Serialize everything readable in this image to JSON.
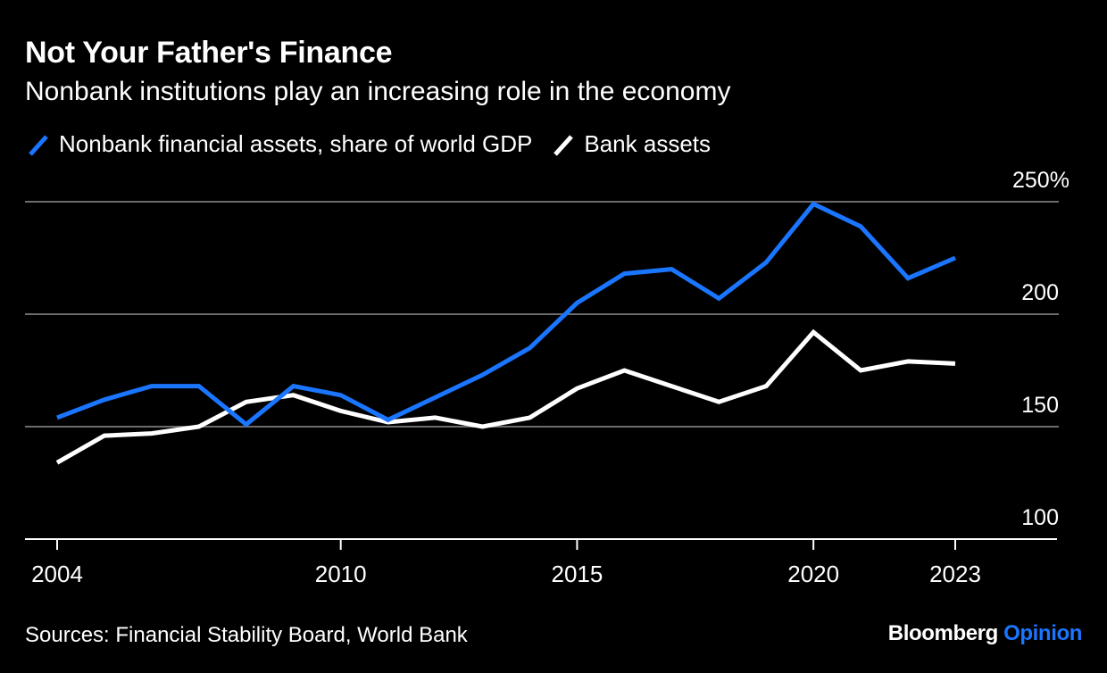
{
  "title": "Not Your Father's Finance",
  "subtitle": "Nonbank institutions play an increasing role in the economy",
  "legend": [
    {
      "label": "Nonbank financial assets, share of world GDP",
      "color": "#1a75ff"
    },
    {
      "label": "Bank assets",
      "color": "#ffffff"
    }
  ],
  "source": "Sources: Financial Stability Board, World Bank",
  "brand": {
    "name": "Bloomberg",
    "suffix": "Opinion",
    "suffix_color": "#1a75ff"
  },
  "chart_data": {
    "type": "line",
    "x": [
      2004,
      2005,
      2006,
      2007,
      2008,
      2009,
      2010,
      2011,
      2012,
      2013,
      2014,
      2015,
      2016,
      2017,
      2018,
      2019,
      2020,
      2021,
      2022,
      2023
    ],
    "x_ticks": [
      "2004",
      "2010",
      "2015",
      "2020",
      "2023"
    ],
    "y_ticks": [
      {
        "value": 100,
        "label": "100"
      },
      {
        "value": 150,
        "label": "150"
      },
      {
        "value": 200,
        "label": "200"
      },
      {
        "value": 250,
        "label": "250%"
      }
    ],
    "ylim": [
      100,
      250
    ],
    "series": [
      {
        "name": "Nonbank financial assets, share of world GDP",
        "color": "#1a75ff",
        "values": [
          154,
          162,
          168,
          168,
          151,
          168,
          164,
          153,
          163,
          173,
          185,
          205,
          218,
          220,
          207,
          223,
          249,
          239,
          216,
          225
        ]
      },
      {
        "name": "Bank assets",
        "color": "#ffffff",
        "values": [
          134,
          146,
          147,
          150,
          161,
          164,
          157,
          152,
          154,
          150,
          154,
          167,
          175,
          168,
          161,
          168,
          192,
          175,
          179,
          178
        ]
      }
    ],
    "grid": true
  }
}
